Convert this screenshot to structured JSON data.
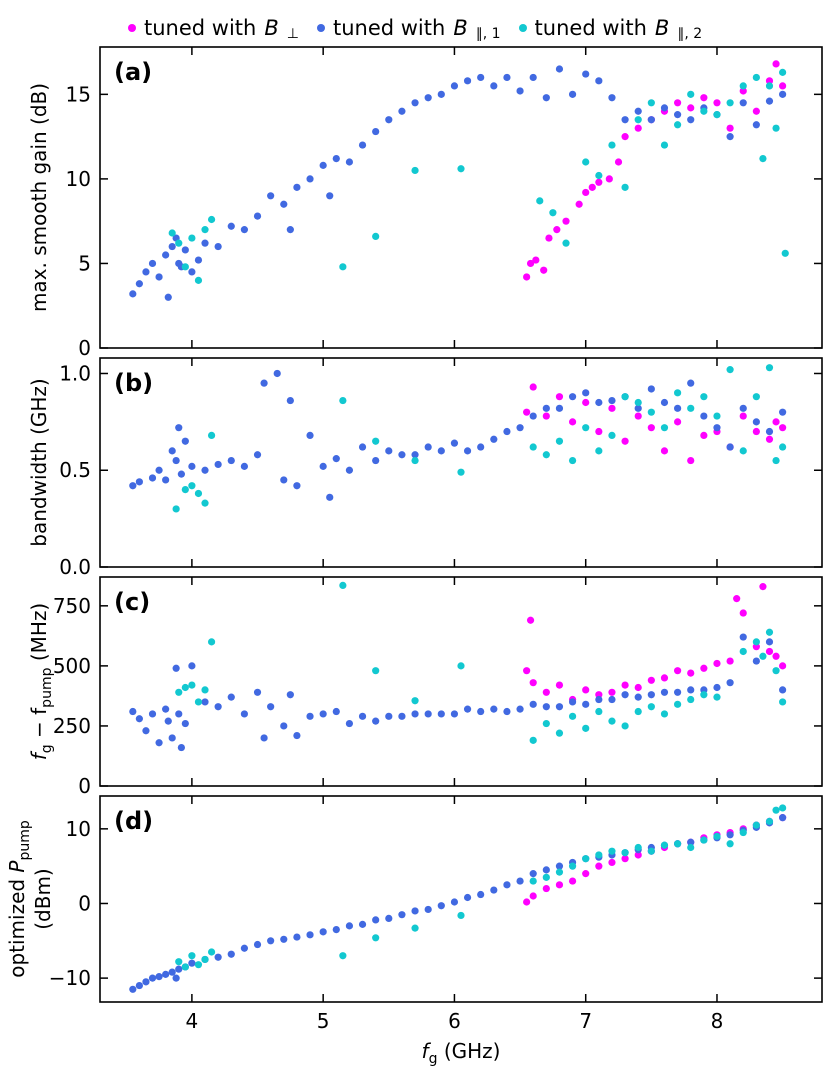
{
  "colors": {
    "perp": "#ff00ff",
    "par1": "#4169e1",
    "par2": "#12c8d0",
    "axis": "#000000"
  },
  "legend": {
    "prefix": "tuned with",
    "items": [
      {
        "key": "perp",
        "var": "B",
        "sub": "⊥"
      },
      {
        "key": "par1",
        "var": "B",
        "sub": "∥, 1"
      },
      {
        "key": "par2",
        "var": "B",
        "sub": "∥, 2"
      }
    ]
  },
  "chart_data": [
    {
      "type": "scatter",
      "panel": "(a)",
      "xlabel": "",
      "ylabel": [
        "max. smooth gain (dB)"
      ],
      "xlim": [
        3.3,
        8.8
      ],
      "ylim": [
        0,
        17.8
      ],
      "yticks": [
        0,
        5,
        10,
        15
      ],
      "ytick_labels": [
        "0",
        "5",
        "10",
        "15"
      ],
      "series": [
        {
          "name": "tuned with B⊥",
          "key": "perp",
          "x": [
            6.55,
            6.58,
            6.62,
            6.68,
            6.72,
            6.78,
            6.85,
            6.95,
            7.0,
            7.05,
            7.1,
            7.18,
            7.25,
            7.3,
            7.4,
            7.5,
            7.6,
            7.7,
            7.8,
            7.9,
            8.0,
            8.1,
            8.2,
            8.3,
            8.4,
            8.45,
            8.5
          ],
          "y": [
            4.2,
            5.0,
            5.2,
            4.6,
            6.5,
            7.0,
            7.5,
            8.5,
            9.2,
            9.5,
            9.8,
            10.0,
            11.0,
            12.5,
            13.0,
            13.5,
            14.0,
            14.5,
            14.2,
            14.8,
            14.5,
            13.0,
            15.2,
            14.0,
            15.8,
            16.8,
            15.5
          ]
        },
        {
          "name": "tuned with B∥,1",
          "key": "par1",
          "x": [
            3.55,
            3.6,
            3.65,
            3.7,
            3.75,
            3.8,
            3.82,
            3.85,
            3.88,
            3.9,
            3.92,
            3.95,
            4.0,
            4.05,
            4.1,
            4.2,
            4.3,
            4.4,
            4.5,
            4.6,
            4.7,
            4.75,
            4.8,
            4.9,
            5.0,
            5.05,
            5.1,
            5.2,
            5.3,
            5.4,
            5.5,
            5.6,
            5.7,
            5.8,
            5.9,
            6.0,
            6.1,
            6.2,
            6.3,
            6.4,
            6.5,
            6.6,
            6.7,
            6.8,
            6.9,
            7.0,
            7.1,
            7.2,
            7.3,
            7.4,
            7.5,
            7.6,
            7.7,
            7.8,
            7.9,
            8.0,
            8.1,
            8.2,
            8.3,
            8.4,
            8.5
          ],
          "y": [
            3.2,
            3.8,
            4.5,
            5.0,
            4.2,
            5.5,
            3.0,
            6.0,
            6.5,
            5.0,
            4.8,
            5.8,
            4.5,
            5.2,
            6.2,
            6.0,
            7.2,
            7.0,
            7.8,
            9.0,
            8.5,
            7.0,
            9.5,
            10.0,
            10.8,
            9.0,
            11.2,
            11.0,
            12.0,
            12.8,
            13.5,
            14.0,
            14.5,
            14.8,
            15.0,
            15.5,
            15.8,
            16.0,
            15.5,
            16.0,
            15.2,
            16.0,
            14.8,
            16.5,
            15.0,
            16.2,
            15.8,
            14.8,
            13.5,
            14.0,
            13.5,
            14.2,
            13.8,
            13.5,
            14.2,
            13.8,
            12.5,
            14.5,
            13.2,
            14.6,
            15.0
          ]
        },
        {
          "name": "tuned with B∥,2",
          "key": "par2",
          "x": [
            3.85,
            3.9,
            3.95,
            4.0,
            4.05,
            4.1,
            4.15,
            5.15,
            5.4,
            5.7,
            6.05,
            6.65,
            6.75,
            6.85,
            7.0,
            7.1,
            7.2,
            7.3,
            7.4,
            7.5,
            7.6,
            7.7,
            7.8,
            7.9,
            8.0,
            8.1,
            8.2,
            8.3,
            8.35,
            8.4,
            8.45,
            8.5,
            8.52
          ],
          "y": [
            6.8,
            6.2,
            4.8,
            6.5,
            4.0,
            7.0,
            7.6,
            4.8,
            6.6,
            10.5,
            10.6,
            8.7,
            8.0,
            6.2,
            11.0,
            10.2,
            12.0,
            9.5,
            13.5,
            14.5,
            12.0,
            13.2,
            15.0,
            14.0,
            13.8,
            14.5,
            15.5,
            16.0,
            11.2,
            15.5,
            13.0,
            16.3,
            5.6
          ]
        }
      ]
    },
    {
      "type": "scatter",
      "panel": "(b)",
      "xlabel": "",
      "ylabel": [
        "bandwidth (GHz)"
      ],
      "xlim": [
        3.3,
        8.8
      ],
      "ylim": [
        0,
        1.08
      ],
      "yticks": [
        0,
        0.5,
        1.0
      ],
      "ytick_labels": [
        "0.0",
        "0.5",
        "1.0"
      ],
      "series": [
        {
          "name": "tuned with B⊥",
          "key": "perp",
          "x": [
            6.55,
            6.6,
            6.7,
            6.8,
            6.9,
            7.0,
            7.1,
            7.2,
            7.3,
            7.4,
            7.5,
            7.6,
            7.7,
            7.8,
            7.9,
            8.0,
            8.1,
            8.2,
            8.3,
            8.4,
            8.45,
            8.5
          ],
          "y": [
            0.8,
            0.93,
            0.78,
            0.88,
            0.75,
            0.85,
            0.7,
            0.82,
            0.65,
            0.78,
            0.72,
            0.6,
            0.75,
            0.55,
            0.68,
            0.7,
            0.62,
            0.78,
            0.7,
            0.66,
            0.75,
            0.72
          ]
        },
        {
          "name": "tuned with B∥,1",
          "key": "par1",
          "x": [
            3.55,
            3.6,
            3.7,
            3.75,
            3.8,
            3.85,
            3.88,
            3.9,
            3.92,
            3.95,
            4.0,
            4.1,
            4.2,
            4.3,
            4.4,
            4.5,
            4.55,
            4.65,
            4.7,
            4.75,
            4.8,
            4.9,
            5.0,
            5.05,
            5.1,
            5.2,
            5.3,
            5.4,
            5.5,
            5.6,
            5.7,
            5.8,
            5.9,
            6.0,
            6.1,
            6.2,
            6.3,
            6.4,
            6.5,
            6.6,
            6.7,
            6.8,
            6.9,
            7.0,
            7.1,
            7.2,
            7.3,
            7.4,
            7.5,
            7.6,
            7.7,
            7.8,
            7.9,
            8.0,
            8.1,
            8.2,
            8.3,
            8.4,
            8.5
          ],
          "y": [
            0.42,
            0.44,
            0.46,
            0.5,
            0.45,
            0.6,
            0.55,
            0.72,
            0.48,
            0.65,
            0.52,
            0.5,
            0.53,
            0.55,
            0.52,
            0.58,
            0.95,
            1.0,
            0.45,
            0.86,
            0.42,
            0.68,
            0.52,
            0.36,
            0.56,
            0.5,
            0.62,
            0.55,
            0.6,
            0.58,
            0.58,
            0.62,
            0.6,
            0.64,
            0.6,
            0.62,
            0.66,
            0.7,
            0.72,
            0.78,
            0.82,
            0.82,
            0.88,
            0.9,
            0.85,
            0.86,
            0.88,
            0.82,
            0.92,
            0.85,
            0.82,
            0.95,
            0.78,
            0.72,
            0.62,
            0.82,
            0.75,
            0.7,
            0.8
          ]
        },
        {
          "name": "tuned with B∥,2",
          "key": "par2",
          "x": [
            3.88,
            3.95,
            4.0,
            4.05,
            4.1,
            4.15,
            5.15,
            5.4,
            5.7,
            6.05,
            6.6,
            6.7,
            6.8,
            6.9,
            7.0,
            7.1,
            7.2,
            7.3,
            7.4,
            7.5,
            7.6,
            7.7,
            7.8,
            7.9,
            8.0,
            8.1,
            8.2,
            8.3,
            8.4,
            8.45,
            8.5
          ],
          "y": [
            0.3,
            0.4,
            0.42,
            0.38,
            0.33,
            0.68,
            0.86,
            0.65,
            0.55,
            0.49,
            0.62,
            0.58,
            0.65,
            0.55,
            0.72,
            0.6,
            0.68,
            0.88,
            0.85,
            0.8,
            0.72,
            0.9,
            0.82,
            0.88,
            0.78,
            1.02,
            0.6,
            0.88,
            1.03,
            0.55,
            0.62
          ]
        }
      ]
    },
    {
      "type": "scatter",
      "panel": "(c)",
      "xlabel": "",
      "ylabel": [
        "f",
        "g",
        " − f",
        "pump",
        " (MHz)"
      ],
      "xlim": [
        3.3,
        8.8
      ],
      "ylim": [
        0,
        870
      ],
      "yticks": [
        0,
        250,
        500,
        750
      ],
      "ytick_labels": [
        "0",
        "250",
        "500",
        "750"
      ],
      "series": [
        {
          "name": "tuned with B⊥",
          "key": "perp",
          "x": [
            6.55,
            6.58,
            6.6,
            6.7,
            6.8,
            6.9,
            7.0,
            7.1,
            7.2,
            7.3,
            7.4,
            7.5,
            7.6,
            7.7,
            7.8,
            7.9,
            8.0,
            8.1,
            8.15,
            8.2,
            8.3,
            8.35,
            8.4,
            8.45,
            8.5
          ],
          "y": [
            480,
            690,
            430,
            390,
            420,
            360,
            400,
            380,
            390,
            420,
            410,
            440,
            450,
            480,
            470,
            490,
            510,
            520,
            780,
            720,
            580,
            830,
            560,
            540,
            500
          ]
        },
        {
          "name": "tuned with B∥,1",
          "key": "par1",
          "x": [
            3.55,
            3.6,
            3.65,
            3.7,
            3.75,
            3.8,
            3.82,
            3.85,
            3.88,
            3.9,
            3.92,
            3.95,
            4.0,
            4.1,
            4.2,
            4.3,
            4.4,
            4.5,
            4.55,
            4.6,
            4.7,
            4.75,
            4.8,
            4.9,
            5.0,
            5.1,
            5.2,
            5.3,
            5.4,
            5.5,
            5.6,
            5.7,
            5.8,
            5.9,
            6.0,
            6.1,
            6.2,
            6.3,
            6.4,
            6.5,
            6.6,
            6.7,
            6.8,
            6.9,
            7.0,
            7.1,
            7.2,
            7.3,
            7.4,
            7.5,
            7.6,
            7.7,
            7.8,
            7.9,
            8.0,
            8.1,
            8.2,
            8.3,
            8.4,
            8.5
          ],
          "y": [
            310,
            280,
            230,
            300,
            180,
            320,
            270,
            200,
            490,
            300,
            160,
            260,
            500,
            350,
            330,
            370,
            300,
            390,
            200,
            330,
            250,
            380,
            210,
            290,
            300,
            310,
            260,
            290,
            270,
            290,
            290,
            300,
            300,
            300,
            300,
            320,
            310,
            320,
            310,
            320,
            340,
            330,
            330,
            350,
            340,
            360,
            360,
            380,
            370,
            380,
            390,
            390,
            400,
            400,
            410,
            430,
            620,
            520,
            600,
            400
          ]
        },
        {
          "name": "tuned with B∥,2",
          "key": "par2",
          "x": [
            3.9,
            3.95,
            4.0,
            4.05,
            4.1,
            4.15,
            5.15,
            5.4,
            5.7,
            6.05,
            6.6,
            6.7,
            6.8,
            6.9,
            7.0,
            7.1,
            7.2,
            7.3,
            7.4,
            7.5,
            7.6,
            7.7,
            7.8,
            7.9,
            8.0,
            8.2,
            8.3,
            8.35,
            8.4,
            8.45,
            8.5
          ],
          "y": [
            390,
            410,
            420,
            350,
            400,
            600,
            835,
            480,
            355,
            500,
            190,
            260,
            220,
            290,
            240,
            310,
            270,
            250,
            310,
            330,
            300,
            340,
            360,
            380,
            370,
            560,
            600,
            540,
            640,
            480,
            350
          ]
        }
      ]
    },
    {
      "type": "scatter",
      "panel": "(d)",
      "xlabel": "f_g (GHz)",
      "ylabel": [
        "optimized P",
        "pump",
        "(dBm)"
      ],
      "xlim": [
        3.3,
        8.8
      ],
      "ylim": [
        -13.2,
        14.4
      ],
      "xticks": [
        4,
        5,
        6,
        7,
        8
      ],
      "xtick_labels": [
        "4",
        "5",
        "6",
        "7",
        "8"
      ],
      "yticks": [
        -10,
        0,
        10
      ],
      "ytick_labels": [
        "−10",
        "0",
        "10"
      ],
      "series": [
        {
          "name": "tuned with B⊥",
          "key": "perp",
          "x": [
            6.55,
            6.6,
            6.7,
            6.8,
            6.9,
            7.0,
            7.1,
            7.2,
            7.3,
            7.4,
            7.5,
            7.6,
            7.7,
            7.8,
            7.9,
            8.0,
            8.1,
            8.2,
            8.3,
            8.4,
            8.5
          ],
          "y": [
            0.2,
            1.0,
            2.0,
            2.5,
            3.0,
            4.0,
            5.0,
            5.5,
            6.0,
            6.5,
            7.0,
            7.5,
            8.0,
            8.2,
            8.8,
            9.2,
            9.5,
            10.0,
            10.5,
            11.0,
            11.5
          ]
        },
        {
          "name": "tuned with B∥,1",
          "key": "par1",
          "x": [
            3.55,
            3.6,
            3.65,
            3.7,
            3.75,
            3.8,
            3.85,
            3.88,
            3.9,
            3.95,
            4.0,
            4.1,
            4.2,
            4.3,
            4.4,
            4.5,
            4.6,
            4.7,
            4.8,
            4.9,
            5.0,
            5.1,
            5.2,
            5.3,
            5.4,
            5.5,
            5.6,
            5.7,
            5.8,
            5.9,
            6.0,
            6.1,
            6.2,
            6.3,
            6.4,
            6.5,
            6.6,
            6.7,
            6.8,
            6.9,
            7.0,
            7.1,
            7.2,
            7.3,
            7.4,
            7.5,
            7.6,
            7.7,
            7.8,
            7.9,
            8.0,
            8.1,
            8.2,
            8.3,
            8.4,
            8.5
          ],
          "y": [
            -11.5,
            -11.0,
            -10.5,
            -10.0,
            -9.8,
            -9.5,
            -9.2,
            -10.0,
            -8.8,
            -8.5,
            -8.0,
            -7.5,
            -7.2,
            -6.8,
            -6.0,
            -5.5,
            -5.0,
            -4.8,
            -4.5,
            -4.2,
            -3.8,
            -3.5,
            -3.0,
            -2.8,
            -2.2,
            -2.0,
            -1.5,
            -1.0,
            -0.8,
            -0.3,
            0.2,
            0.8,
            1.2,
            1.8,
            2.5,
            3.0,
            4.0,
            4.5,
            5.0,
            5.5,
            6.0,
            6.2,
            6.5,
            6.8,
            7.2,
            7.5,
            7.8,
            8.0,
            8.2,
            8.5,
            8.8,
            9.2,
            9.8,
            10.2,
            10.8,
            11.5
          ]
        },
        {
          "name": "tuned with B∥,2",
          "key": "par2",
          "x": [
            3.9,
            3.95,
            4.0,
            4.05,
            4.1,
            4.15,
            5.15,
            5.4,
            5.7,
            6.05,
            6.6,
            6.7,
            6.8,
            6.9,
            7.0,
            7.1,
            7.2,
            7.3,
            7.4,
            7.5,
            7.6,
            7.7,
            7.8,
            7.9,
            8.0,
            8.1,
            8.2,
            8.3,
            8.4,
            8.45,
            8.5
          ],
          "y": [
            -7.8,
            -8.5,
            -7.0,
            -8.2,
            -7.5,
            -6.5,
            -7.0,
            -4.6,
            -3.3,
            -1.6,
            3.0,
            3.5,
            4.2,
            5.0,
            6.0,
            6.5,
            7.0,
            6.8,
            7.5,
            7.0,
            7.8,
            8.0,
            7.5,
            8.5,
            9.0,
            8.0,
            9.5,
            10.5,
            11.0,
            12.5,
            12.8
          ]
        }
      ]
    }
  ]
}
